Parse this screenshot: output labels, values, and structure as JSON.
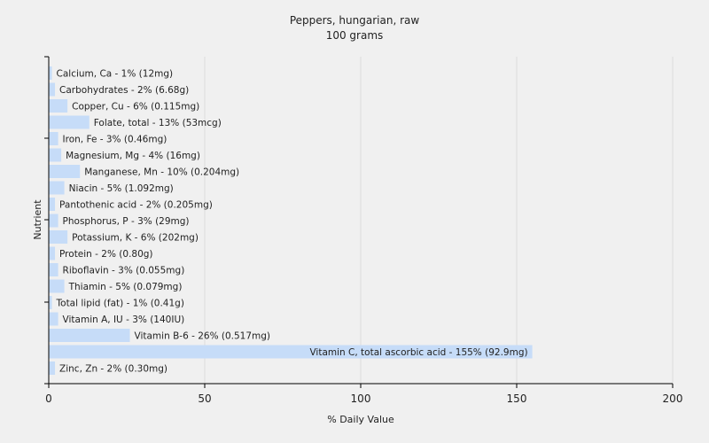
{
  "chart_data": {
    "type": "bar",
    "orientation": "horizontal",
    "title": "Peppers, hungarian, raw",
    "subtitle": "100 grams",
    "xlabel": "% Daily Value",
    "ylabel": "Nutrient",
    "xlim": [
      0,
      200
    ],
    "xticks": [
      "0",
      "50",
      "100",
      "150",
      "200"
    ],
    "grid": true,
    "bar_color": "#c6dcf8",
    "categories": [
      "Calcium, Ca",
      "Carbohydrates",
      "Copper, Cu",
      "Folate, total",
      "Iron, Fe",
      "Magnesium, Mg",
      "Manganese, Mn",
      "Niacin",
      "Pantothenic acid",
      "Phosphorus, P",
      "Potassium, K",
      "Protein",
      "Riboflavin",
      "Thiamin",
      "Total lipid (fat)",
      "Vitamin A, IU",
      "Vitamin B-6",
      "Vitamin C, total ascorbic acid",
      "Zinc, Zn"
    ],
    "values": [
      1,
      2,
      6,
      13,
      3,
      4,
      10,
      5,
      2,
      3,
      6,
      2,
      3,
      5,
      1,
      3,
      26,
      155,
      2
    ],
    "labels": [
      "Calcium, Ca - 1% (12mg)",
      "Carbohydrates - 2% (6.68g)",
      "Copper, Cu - 6% (0.115mg)",
      "Folate, total - 13% (53mcg)",
      "Iron, Fe - 3% (0.46mg)",
      "Magnesium, Mg - 4% (16mg)",
      "Manganese, Mn - 10% (0.204mg)",
      "Niacin - 5% (1.092mg)",
      "Pantothenic acid - 2% (0.205mg)",
      "Phosphorus, P - 3% (29mg)",
      "Potassium, K - 6% (202mg)",
      "Protein - 2% (0.80g)",
      "Riboflavin - 3% (0.055mg)",
      "Thiamin - 5% (0.079mg)",
      "Total lipid (fat) - 1% (0.41g)",
      "Vitamin A, IU - 3% (140IU)",
      "Vitamin B-6 - 26% (0.517mg)",
      "Vitamin C, total ascorbic acid - 155% (92.9mg)",
      "Zinc, Zn - 2% (0.30mg)"
    ]
  }
}
